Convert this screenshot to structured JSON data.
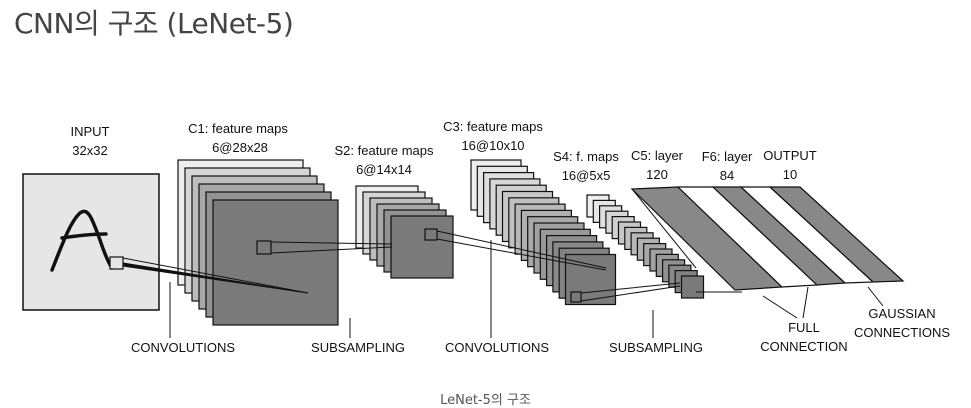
{
  "title": "CNN의 구조 (LeNet-5)",
  "caption": "LeNet-5의 구조",
  "colors": {
    "input_fill": "#e6e6e6",
    "map_light": "#eeeeee",
    "map_mid": "#bdbdbd",
    "map_dark": "#7a7a7a",
    "band_dark": "#888888",
    "band_light": "#ffffff",
    "stroke": "#111111",
    "title": "#444444"
  },
  "layers": {
    "input": {
      "name": "INPUT",
      "shape": "32x32"
    },
    "c1": {
      "name": "C1: feature maps",
      "shape": "6@28x28"
    },
    "s2": {
      "name": "S2: feature maps",
      "shape": "6@14x14"
    },
    "c3": {
      "name": "C3: feature maps",
      "shape": "16@10x10"
    },
    "s4": {
      "name": "S4: f. maps",
      "shape": "16@5x5"
    },
    "c5": {
      "name": "C5: layer",
      "shape": "120"
    },
    "f6": {
      "name": "F6: layer",
      "shape": "84"
    },
    "output": {
      "name": "OUTPUT",
      "shape": "10"
    }
  },
  "operations": {
    "conv1": "CONVOLUTIONS",
    "sub1": "SUBSAMPLING",
    "conv2": "CONVOLUTIONS",
    "sub2": "SUBSAMPLING",
    "full_line1": "FULL",
    "full_line2": "CONNECTION",
    "gauss_line1": "GAUSSIAN",
    "gauss_line2": "CONNECTIONS"
  }
}
